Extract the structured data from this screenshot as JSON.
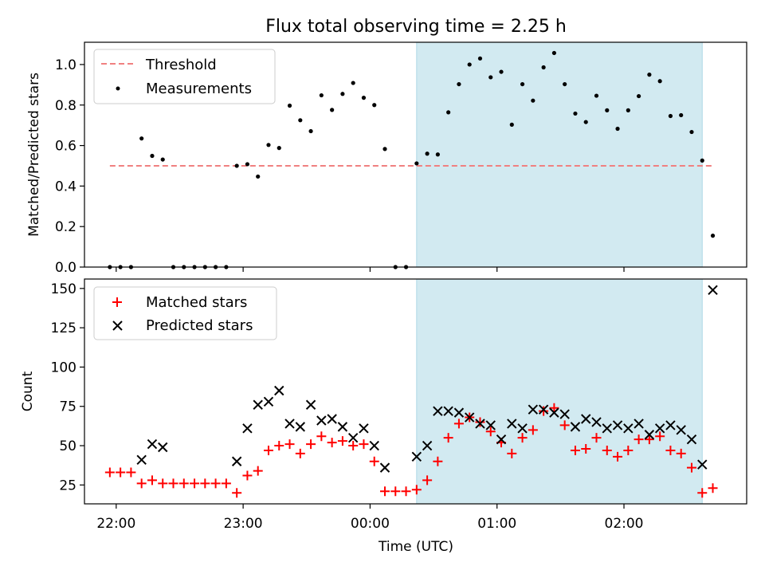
{
  "title": "Flux total observing time = 2.25 h",
  "colors": {
    "threshold": "#f08080",
    "measurement": "#000000",
    "matched": "#ff0000",
    "predicted": "#000000",
    "shade": "#add8e6"
  },
  "chart_data": [
    {
      "type": "scatter",
      "panel": "top",
      "ylabel": "Matched/Predicted stars",
      "ylim": [
        0,
        1.11
      ],
      "xlim": [
        "21:45",
        "02:58"
      ],
      "yticks": [
        "0.0",
        "0.2",
        "0.4",
        "0.6",
        "0.8",
        "1.0"
      ],
      "ytick_values": [
        0,
        0.2,
        0.4,
        0.6,
        0.8,
        1.0
      ],
      "legend": {
        "placement": "top-left",
        "entries": [
          "Threshold",
          "Measurements"
        ]
      },
      "shaded_span": [
        "00:22",
        "02:37"
      ],
      "threshold": {
        "name": "Threshold",
        "value": 0.5,
        "x_range": [
          "21:57",
          "02:42"
        ]
      },
      "series": [
        {
          "name": "Measurements",
          "points": [
            [
              "21:57",
              0.0
            ],
            [
              "22:02",
              0.0
            ],
            [
              "22:07",
              0.0
            ],
            [
              "22:12",
              0.635
            ],
            [
              "22:17",
              0.549
            ],
            [
              "22:22",
              0.531
            ],
            [
              "22:27",
              0.0
            ],
            [
              "22:32",
              0.0
            ],
            [
              "22:37",
              0.0
            ],
            [
              "22:42",
              0.0
            ],
            [
              "22:47",
              0.0
            ],
            [
              "22:52",
              0.0
            ],
            [
              "22:57",
              0.5
            ],
            [
              "23:02",
              0.508
            ],
            [
              "23:07",
              0.447
            ],
            [
              "23:12",
              0.603
            ],
            [
              "23:17",
              0.588
            ],
            [
              "23:22",
              0.797
            ],
            [
              "23:27",
              0.725
            ],
            [
              "23:32",
              0.671
            ],
            [
              "23:37",
              0.848
            ],
            [
              "23:42",
              0.776
            ],
            [
              "23:47",
              0.855
            ],
            [
              "23:52",
              0.909
            ],
            [
              "23:57",
              0.836
            ],
            [
              "00:02",
              0.8
            ],
            [
              "00:07",
              0.583
            ],
            [
              "00:12",
              0.0
            ],
            [
              "00:17",
              0.0
            ],
            [
              "00:22",
              0.512
            ],
            [
              "00:27",
              0.56
            ],
            [
              "00:32",
              0.556
            ],
            [
              "00:37",
              0.764
            ],
            [
              "00:42",
              0.903
            ],
            [
              "00:47",
              1.0
            ],
            [
              "00:52",
              1.03
            ],
            [
              "00:57",
              0.937
            ],
            [
              "01:02",
              0.964
            ],
            [
              "01:07",
              0.703
            ],
            [
              "01:12",
              0.903
            ],
            [
              "01:17",
              0.822
            ],
            [
              "01:22",
              0.986
            ],
            [
              "01:27",
              1.057
            ],
            [
              "01:32",
              0.903
            ],
            [
              "01:37",
              0.758
            ],
            [
              "01:42",
              0.716
            ],
            [
              "01:47",
              0.846
            ],
            [
              "01:52",
              0.774
            ],
            [
              "01:57",
              0.683
            ],
            [
              "02:02",
              0.774
            ],
            [
              "02:07",
              0.844
            ],
            [
              "02:12",
              0.95
            ],
            [
              "02:17",
              0.918
            ],
            [
              "02:22",
              0.746
            ],
            [
              "02:27",
              0.75
            ],
            [
              "02:32",
              0.667
            ],
            [
              "02:37",
              0.526
            ],
            [
              "02:42",
              0.155
            ]
          ]
        }
      ]
    },
    {
      "type": "scatter",
      "panel": "bottom",
      "ylabel": "Count",
      "xlabel": "Time (UTC)",
      "ylim": [
        13,
        156
      ],
      "xlim": [
        "21:45",
        "02:58"
      ],
      "yticks": [
        "25",
        "50",
        "75",
        "100",
        "125",
        "150"
      ],
      "ytick_values": [
        25,
        50,
        75,
        100,
        125,
        150
      ],
      "xticks": [
        "22:00",
        "23:00",
        "00:00",
        "01:00",
        "02:00"
      ],
      "legend": {
        "placement": "top-left",
        "entries": [
          "Matched stars",
          "Predicted stars"
        ]
      },
      "shaded_span": [
        "00:22",
        "02:37"
      ],
      "series": [
        {
          "name": "Matched stars",
          "marker": "plus",
          "points": [
            [
              "21:57",
              33
            ],
            [
              "22:02",
              33
            ],
            [
              "22:07",
              33
            ],
            [
              "22:12",
              26
            ],
            [
              "22:17",
              28
            ],
            [
              "22:22",
              26
            ],
            [
              "22:27",
              26
            ],
            [
              "22:32",
              26
            ],
            [
              "22:37",
              26
            ],
            [
              "22:42",
              26
            ],
            [
              "22:47",
              26
            ],
            [
              "22:52",
              26
            ],
            [
              "22:57",
              20
            ],
            [
              "23:02",
              31
            ],
            [
              "23:07",
              34
            ],
            [
              "23:12",
              47
            ],
            [
              "23:17",
              50
            ],
            [
              "23:22",
              51
            ],
            [
              "23:27",
              45
            ],
            [
              "23:32",
              51
            ],
            [
              "23:37",
              56
            ],
            [
              "23:42",
              52
            ],
            [
              "23:47",
              53
            ],
            [
              "23:52",
              50
            ],
            [
              "23:57",
              51
            ],
            [
              "00:02",
              40
            ],
            [
              "00:07",
              21
            ],
            [
              "00:12",
              21
            ],
            [
              "00:17",
              21
            ],
            [
              "00:22",
              22
            ],
            [
              "00:27",
              28
            ],
            [
              "00:32",
              40
            ],
            [
              "00:37",
              55
            ],
            [
              "00:42",
              64
            ],
            [
              "00:47",
              68
            ],
            [
              "00:52",
              65
            ],
            [
              "00:57",
              59
            ],
            [
              "01:02",
              52
            ],
            [
              "01:07",
              45
            ],
            [
              "01:12",
              55
            ],
            [
              "01:17",
              60
            ],
            [
              "01:22",
              72
            ],
            [
              "01:27",
              74
            ],
            [
              "01:32",
              63
            ],
            [
              "01:37",
              47
            ],
            [
              "01:42",
              48
            ],
            [
              "01:47",
              55
            ],
            [
              "01:52",
              47
            ],
            [
              "01:57",
              43
            ],
            [
              "02:02",
              47
            ],
            [
              "02:07",
              54
            ],
            [
              "02:12",
              54
            ],
            [
              "02:17",
              56
            ],
            [
              "02:22",
              47
            ],
            [
              "02:27",
              45
            ],
            [
              "02:32",
              36
            ],
            [
              "02:37",
              20
            ],
            [
              "02:42",
              23
            ]
          ]
        },
        {
          "name": "Predicted stars",
          "marker": "x",
          "points": [
            [
              "22:12",
              41
            ],
            [
              "22:17",
              51
            ],
            [
              "22:22",
              49
            ],
            [
              "22:57",
              40
            ],
            [
              "23:02",
              61
            ],
            [
              "23:07",
              76
            ],
            [
              "23:12",
              78
            ],
            [
              "23:17",
              85
            ],
            [
              "23:22",
              64
            ],
            [
              "23:27",
              62
            ],
            [
              "23:32",
              76
            ],
            [
              "23:37",
              66
            ],
            [
              "23:42",
              67
            ],
            [
              "23:47",
              62
            ],
            [
              "23:52",
              55
            ],
            [
              "23:57",
              61
            ],
            [
              "00:02",
              50
            ],
            [
              "00:07",
              36
            ],
            [
              "00:22",
              43
            ],
            [
              "00:27",
              50
            ],
            [
              "00:32",
              72
            ],
            [
              "00:37",
              72
            ],
            [
              "00:42",
              71
            ],
            [
              "00:47",
              68
            ],
            [
              "00:52",
              64
            ],
            [
              "00:57",
              63
            ],
            [
              "01:02",
              54
            ],
            [
              "01:07",
              64
            ],
            [
              "01:12",
              61
            ],
            [
              "01:17",
              73
            ],
            [
              "01:22",
              73
            ],
            [
              "01:27",
              71
            ],
            [
              "01:32",
              70
            ],
            [
              "01:37",
              62
            ],
            [
              "01:42",
              67
            ],
            [
              "01:47",
              65
            ],
            [
              "01:52",
              61
            ],
            [
              "01:57",
              63
            ],
            [
              "02:02",
              61
            ],
            [
              "02:07",
              64
            ],
            [
              "02:12",
              57
            ],
            [
              "02:17",
              61
            ],
            [
              "02:22",
              63
            ],
            [
              "02:27",
              60
            ],
            [
              "02:32",
              54
            ],
            [
              "02:37",
              38
            ],
            [
              "02:42",
              149
            ]
          ]
        }
      ]
    }
  ]
}
